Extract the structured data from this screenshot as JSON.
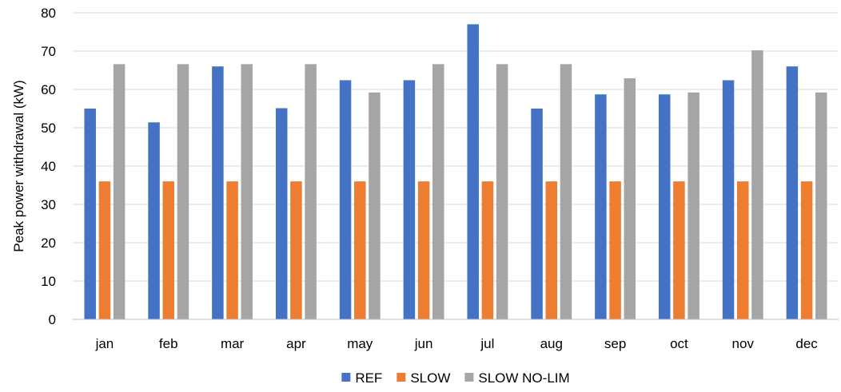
{
  "chart_data": {
    "type": "bar",
    "title": "",
    "xlabel": "",
    "ylabel": "Peak power withdrawal (kW)",
    "ylim": [
      0,
      80
    ],
    "yticks": [
      0,
      10,
      20,
      30,
      40,
      50,
      60,
      70,
      80
    ],
    "grid": true,
    "legend_position": "bottom",
    "categories": [
      "jan",
      "feb",
      "mar",
      "apr",
      "may",
      "jun",
      "jul",
      "aug",
      "sep",
      "oct",
      "nov",
      "dec"
    ],
    "series": [
      {
        "name": "REF",
        "color": "#4472C4",
        "values": [
          55.0,
          51.4,
          66.0,
          55.1,
          62.4,
          62.4,
          77.0,
          55.0,
          58.7,
          58.7,
          62.4,
          66.0
        ]
      },
      {
        "name": "SLOW",
        "color": "#ED7D31",
        "values": [
          36.0,
          36.0,
          36.0,
          36.0,
          36.0,
          36.0,
          36.0,
          36.0,
          36.0,
          36.0,
          36.0,
          36.0
        ]
      },
      {
        "name": "SLOW NO-LIM",
        "color": "#A5A5A5",
        "values": [
          66.6,
          66.6,
          66.6,
          66.6,
          59.2,
          66.6,
          66.6,
          66.6,
          62.9,
          59.2,
          70.2,
          59.2
        ]
      }
    ]
  },
  "colors": {
    "grid": "#D9D9D9",
    "axis": "#BFBFBF"
  }
}
